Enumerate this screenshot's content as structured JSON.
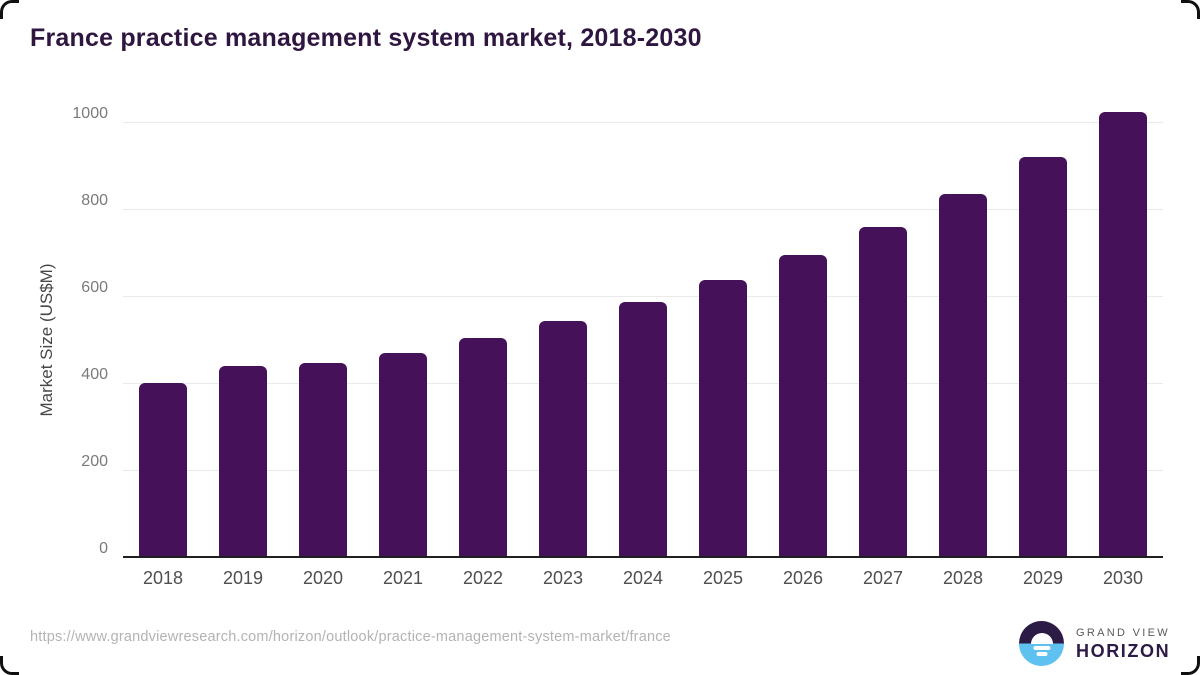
{
  "header": {
    "title": "France practice management system market, 2018-2030"
  },
  "chart_data": {
    "type": "bar",
    "title": "France practice management system market, 2018-2030",
    "categories": [
      "2018",
      "2019",
      "2020",
      "2021",
      "2022",
      "2023",
      "2024",
      "2025",
      "2026",
      "2027",
      "2028",
      "2029",
      "2030"
    ],
    "values": [
      400,
      439,
      446,
      469,
      503,
      542,
      586,
      637,
      694,
      758,
      835,
      920,
      1022
    ],
    "xlabel": "",
    "ylabel": "Market Size (US$M)",
    "ylim": [
      0,
      1000
    ],
    "yticks": [
      0,
      200,
      400,
      600,
      800,
      1000
    ],
    "grid": "horizontal",
    "legend": "none",
    "bar_color": "#451159"
  },
  "footer": {
    "source_url": "https://www.grandviewresearch.com/horizon/outlook/practice-management-system-market/france",
    "logo": {
      "line1": "GRAND VIEW",
      "line2": "HORIZON"
    }
  },
  "colors": {
    "bar": "#451159",
    "title_text": "#2f1640",
    "axis_label_text": "#4f4f4f",
    "tick_text": "#7a7a7a",
    "gridline": "#eaeaea",
    "baseline": "#1f1f1f",
    "source_text": "#b3b3b3",
    "logo_dark": "#2b1b45",
    "logo_blue": "#5ec1ef"
  }
}
